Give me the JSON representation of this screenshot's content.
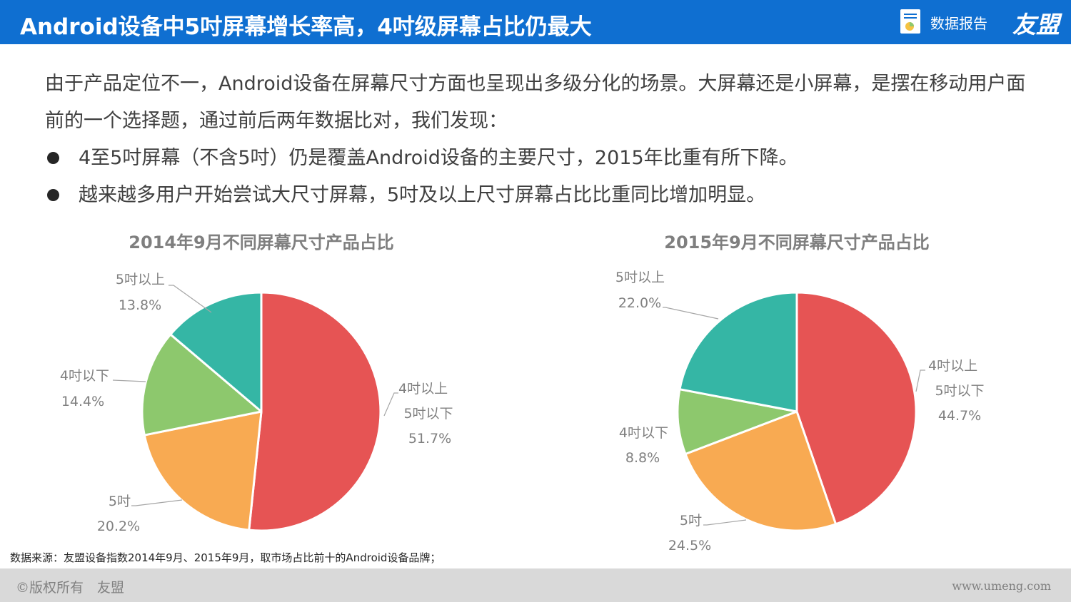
{
  "header": {
    "title": "Android设备中5吋屏幕增长率高，4吋级屏幕占比仍最大",
    "report_label": "数据报告",
    "brand": "友盟",
    "report_icon": "document-chart-icon",
    "background_color": "#0f6fd1"
  },
  "intro": "由于产品定位不一，Android设备在屏幕尺寸方面也呈现出多级分化的场景。大屏幕还是小屏幕，是摆在移动用户面前的一个选择题，通过前后两年数据比对，我们发现：",
  "bullets": [
    "4至5吋屏幕（不含5吋）仍是覆盖Android设备的主要尺寸，2015年比重有所下降。",
    "越来越多用户开始尝试大尺寸屏幕，5吋及以上尺寸屏幕占比比重同比增加明显。"
  ],
  "chart_data": [
    {
      "type": "pie",
      "title": "2014年9月不同屏幕尺寸产品占比",
      "slices": [
        {
          "label": "4吋以上5吋以下",
          "value": 51.7,
          "value_text": "51.7%",
          "color": "#e65454"
        },
        {
          "label": "5吋",
          "value": 20.2,
          "value_text": "20.2%",
          "color": "#f8aa52"
        },
        {
          "label": "4吋以下",
          "value": 14.4,
          "value_text": "14.4%",
          "color": "#8dc86d"
        },
        {
          "label": "5吋以上",
          "value": 13.8,
          "value_text": "13.8%",
          "color": "#35b6a5"
        }
      ]
    },
    {
      "type": "pie",
      "title": "2015年9月不同屏幕尺寸产品占比",
      "slices": [
        {
          "label": "4吋以上5吋以下",
          "value": 44.7,
          "value_text": "44.7%",
          "color": "#e65454"
        },
        {
          "label": "5吋",
          "value": 24.5,
          "value_text": "24.5%",
          "color": "#f8aa52"
        },
        {
          "label": "4吋以下",
          "value": 8.8,
          "value_text": "8.8%",
          "color": "#8dc86d"
        },
        {
          "label": "5吋以上",
          "value": 22.0,
          "value_text": "22.0%",
          "color": "#35b6a5"
        }
      ]
    }
  ],
  "source_note": "数据来源：友盟设备指数2014年9月、2015年9月，取市场占比前十的Android设备品牌；",
  "footer": {
    "copyright": "©版权所有　友盟",
    "url": "www.umeng.com"
  }
}
